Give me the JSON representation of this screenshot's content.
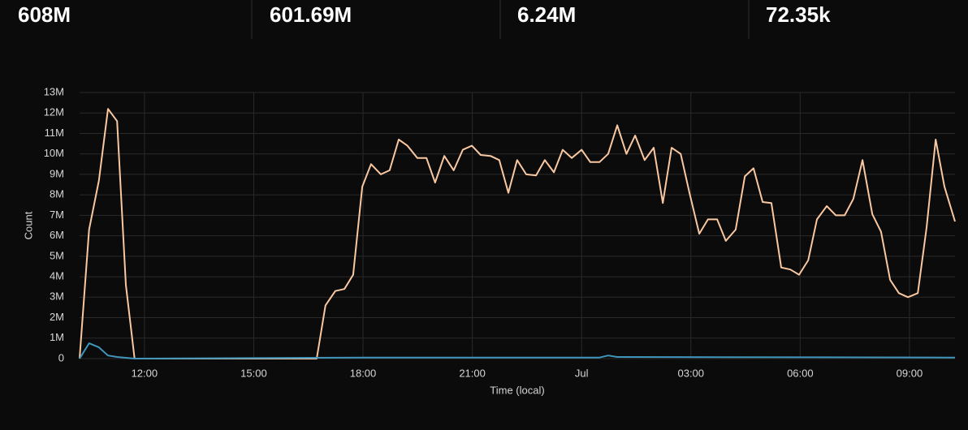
{
  "stats": [
    "608M",
    "601.69M",
    "6.24M",
    "72.35k"
  ],
  "chart_data": {
    "type": "line",
    "xlabel": "Time (local)",
    "ylabel": "Count",
    "xlim": [
      10.22,
      34.25
    ],
    "ylim": [
      0,
      13000000
    ],
    "xticks": [
      {
        "value": 12,
        "label": "12:00"
      },
      {
        "value": 15,
        "label": "15:00"
      },
      {
        "value": 18,
        "label": "18:00"
      },
      {
        "value": 21,
        "label": "21:00"
      },
      {
        "value": 24,
        "label": "Jul"
      },
      {
        "value": 27,
        "label": "03:00"
      },
      {
        "value": 30,
        "label": "06:00"
      },
      {
        "value": 33,
        "label": "09:00"
      }
    ],
    "yticks": [
      0,
      {
        "value": 1000000,
        "label": "1M"
      },
      {
        "value": 2000000,
        "label": "2M"
      },
      {
        "value": 3000000,
        "label": "3M"
      },
      {
        "value": 4000000,
        "label": "4M"
      },
      {
        "value": 5000000,
        "label": "5M"
      },
      {
        "value": 6000000,
        "label": "6M"
      },
      {
        "value": 7000000,
        "label": "7M"
      },
      {
        "value": 8000000,
        "label": "8M"
      },
      {
        "value": 9000000,
        "label": "9M"
      },
      {
        "value": 10000000,
        "label": "10M"
      },
      {
        "value": 11000000,
        "label": "11M"
      },
      {
        "value": 12000000,
        "label": "12M"
      },
      {
        "value": 13000000,
        "label": "13M"
      }
    ],
    "grid": true,
    "series": [
      {
        "color": "#f9c8a1",
        "x": [
          10.22,
          10.48,
          10.75,
          11.0,
          11.25,
          11.49,
          11.73,
          16.73,
          16.97,
          17.24,
          17.49,
          17.73,
          17.98,
          18.22,
          18.49,
          18.73,
          18.98,
          19.22,
          19.49,
          19.74,
          19.98,
          20.23,
          20.49,
          20.74,
          20.99,
          21.23,
          21.5,
          21.74,
          21.99,
          22.23,
          22.48,
          22.75,
          22.99,
          23.24,
          23.48,
          23.73,
          24.0,
          24.24,
          24.49,
          24.73,
          24.98,
          25.23,
          25.47,
          25.73,
          25.98,
          26.23,
          26.47,
          26.72,
          26.96,
          27.23,
          27.47,
          27.72,
          27.96,
          28.23,
          28.48,
          28.72,
          28.97,
          29.21,
          29.48,
          29.73,
          29.97,
          30.22,
          30.46,
          30.73,
          30.98,
          31.22,
          31.46,
          31.71,
          31.98,
          32.22,
          32.47,
          32.71,
          32.96,
          33.23,
          33.47,
          33.72,
          33.96,
          34.25
        ],
        "values": [
          0,
          6300000,
          8700000,
          12200000,
          11600000,
          3600000,
          0,
          0,
          2600000,
          3300000,
          3400000,
          4100000,
          8400000,
          9500000,
          9000000,
          9200000,
          10700000,
          10400000,
          9800000,
          9800000,
          8600000,
          9900000,
          9200000,
          10200000,
          10400000,
          9950000,
          9900000,
          9700000,
          8100000,
          9700000,
          9000000,
          8950000,
          9700000,
          9100000,
          10200000,
          9800000,
          10200000,
          9600000,
          9600000,
          10000000,
          11400000,
          10000000,
          10900000,
          9700000,
          10300000,
          7600000,
          10300000,
          10000000,
          8100000,
          6100000,
          6800000,
          6800000,
          5750000,
          6300000,
          8900000,
          9300000,
          7650000,
          7600000,
          4450000,
          4350000,
          4100000,
          4800000,
          6800000,
          7450000,
          7000000,
          7000000,
          7800000,
          9700000,
          7050000,
          6200000,
          3850000,
          3200000,
          3000000,
          3200000,
          6400000,
          10700000,
          8400000,
          6700000
        ]
      },
      {
        "color": "#3f95bb",
        "x": [
          10.22,
          10.48,
          10.75,
          11.0,
          11.25,
          11.73,
          17.98,
          24.49,
          24.73,
          24.98,
          34.25
        ],
        "values": [
          0,
          750000,
          550000,
          150000,
          80000,
          0,
          50000,
          50000,
          150000,
          80000,
          50000
        ]
      }
    ]
  }
}
